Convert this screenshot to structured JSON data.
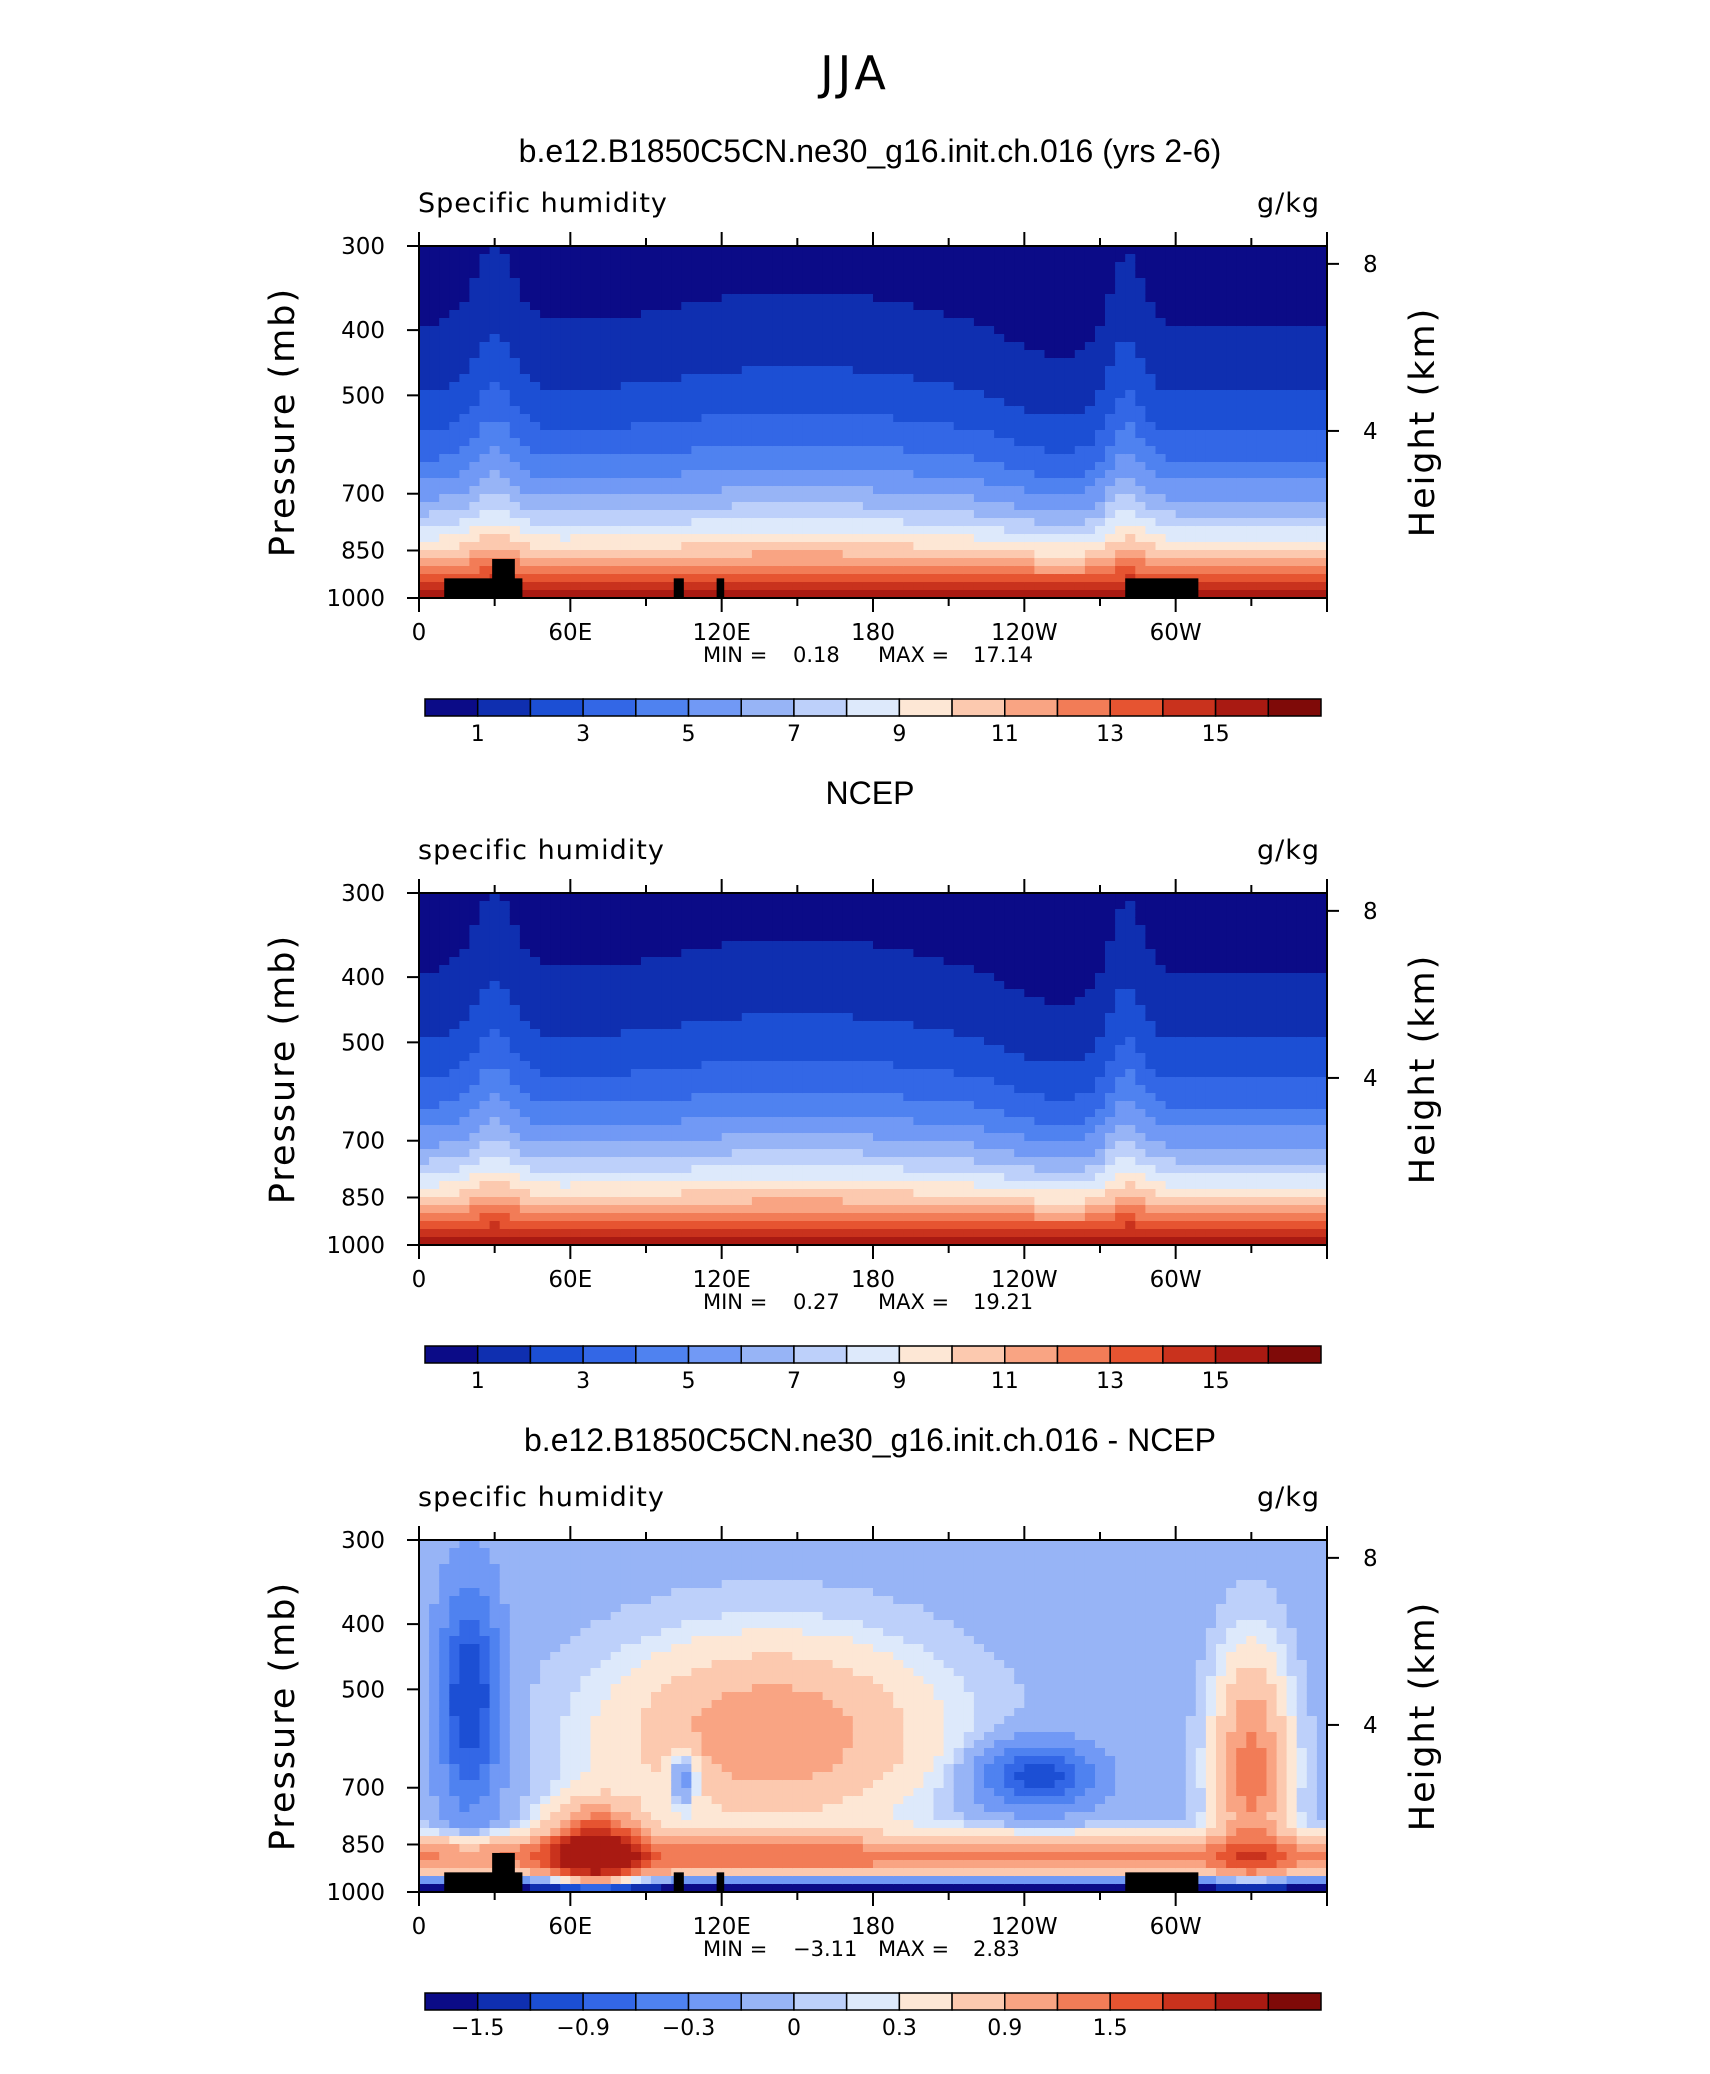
{
  "figure": {
    "season": "JJA",
    "colorbar_colors": [
      "#0b0b87",
      "#0f2fb0",
      "#1c4fd4",
      "#3367e6",
      "#4f82f0",
      "#7199f5",
      "#97b4f6",
      "#bdd0fa",
      "#dde9fb",
      "#fde7d5",
      "#fcc9af",
      "#f9a483",
      "#f27c57",
      "#e65431",
      "#c9321d",
      "#a91a12",
      "#7f0a08"
    ],
    "diff_colors": [
      "#0b0b87",
      "#0f2fb0",
      "#1c4fd4",
      "#3367e6",
      "#4f82f0",
      "#7199f5",
      "#97b4f6",
      "#bdd0fa",
      "#dde9fb",
      "#fde7d5",
      "#fcc9af",
      "#f9a483",
      "#f27c57",
      "#e65431",
      "#c9321d",
      "#a91a12",
      "#7f0a08"
    ]
  },
  "chart_data": [
    {
      "type": "heatmap",
      "title": "b.e12.B1850C5CN.ne30_g16.init.ch.016 (yrs 2-6)",
      "variable_label": "Specific humidity",
      "units": "g/kg",
      "ylabel": "Pressure (mb)",
      "ylabel_right": "Height (km)",
      "x_ticks": [
        "0",
        "60E",
        "120E",
        "180",
        "120W",
        "60W"
      ],
      "x_tick_lon": [
        0,
        60,
        120,
        180,
        240,
        300
      ],
      "xlim": [
        0,
        360
      ],
      "y_ticks": [
        "300",
        "400",
        "500",
        "700",
        "850",
        "1000"
      ],
      "y_tick_values": [
        300,
        400,
        500,
        700,
        850,
        1000
      ],
      "ylim": [
        1000,
        300
      ],
      "height_ticks": [
        "8",
        "4"
      ],
      "height_tick_values": [
        8,
        4
      ],
      "min_label": "MIN =",
      "min_value": "0.18",
      "max_label": "MAX =",
      "max_value": "17.14",
      "colorbar_labels": [
        "1",
        "3",
        "5",
        "7",
        "9",
        "11",
        "13",
        "15"
      ],
      "colorbar_levels": [
        1,
        2,
        3,
        4,
        5,
        6,
        7,
        8,
        9,
        10,
        11,
        12,
        13,
        14,
        15,
        16
      ],
      "show_terrain": true
    },
    {
      "type": "heatmap",
      "title": "NCEP",
      "variable_label": "specific humidity",
      "units": "g/kg",
      "ylabel": "Pressure (mb)",
      "ylabel_right": "Height (km)",
      "x_ticks": [
        "0",
        "60E",
        "120E",
        "180",
        "120W",
        "60W"
      ],
      "x_tick_lon": [
        0,
        60,
        120,
        180,
        240,
        300
      ],
      "xlim": [
        0,
        360
      ],
      "y_ticks": [
        "300",
        "400",
        "500",
        "700",
        "850",
        "1000"
      ],
      "y_tick_values": [
        300,
        400,
        500,
        700,
        850,
        1000
      ],
      "ylim": [
        1000,
        300
      ],
      "height_ticks": [
        "8",
        "4"
      ],
      "height_tick_values": [
        8,
        4
      ],
      "min_label": "MIN =",
      "min_value": "0.27",
      "max_label": "MAX =",
      "max_value": "19.21",
      "colorbar_labels": [
        "1",
        "3",
        "5",
        "7",
        "9",
        "11",
        "13",
        "15"
      ],
      "colorbar_levels": [
        1,
        2,
        3,
        4,
        5,
        6,
        7,
        8,
        9,
        10,
        11,
        12,
        13,
        14,
        15,
        16
      ],
      "show_terrain": false
    },
    {
      "type": "heatmap",
      "title": "b.e12.B1850C5CN.ne30_g16.init.ch.016 - NCEP",
      "variable_label": "specific humidity",
      "units": "g/kg",
      "ylabel": "Pressure (mb)",
      "ylabel_right": "Height (km)",
      "x_ticks": [
        "0",
        "60E",
        "120E",
        "180",
        "120W",
        "60W"
      ],
      "x_tick_lon": [
        0,
        60,
        120,
        180,
        240,
        300
      ],
      "xlim": [
        0,
        360
      ],
      "y_ticks": [
        "300",
        "400",
        "500",
        "700",
        "850",
        "1000"
      ],
      "y_tick_values": [
        300,
        400,
        500,
        700,
        850,
        1000
      ],
      "ylim": [
        1000,
        300
      ],
      "height_ticks": [
        "8",
        "4"
      ],
      "height_tick_values": [
        8,
        4
      ],
      "min_label": "MIN =",
      "min_value": "−3.11",
      "max_label": "MAX =",
      "max_value": "2.83",
      "colorbar_labels": [
        "−1.5",
        "−0.9",
        "−0.3",
        "0",
        "0.3",
        "0.9",
        "1.5"
      ],
      "colorbar_levels": [
        -1.8,
        -1.5,
        -1.2,
        -0.9,
        -0.6,
        -0.3,
        -0.1,
        0,
        0.1,
        0.3,
        0.6,
        0.9,
        1.2,
        1.5,
        1.8
      ],
      "show_terrain": true
    }
  ]
}
